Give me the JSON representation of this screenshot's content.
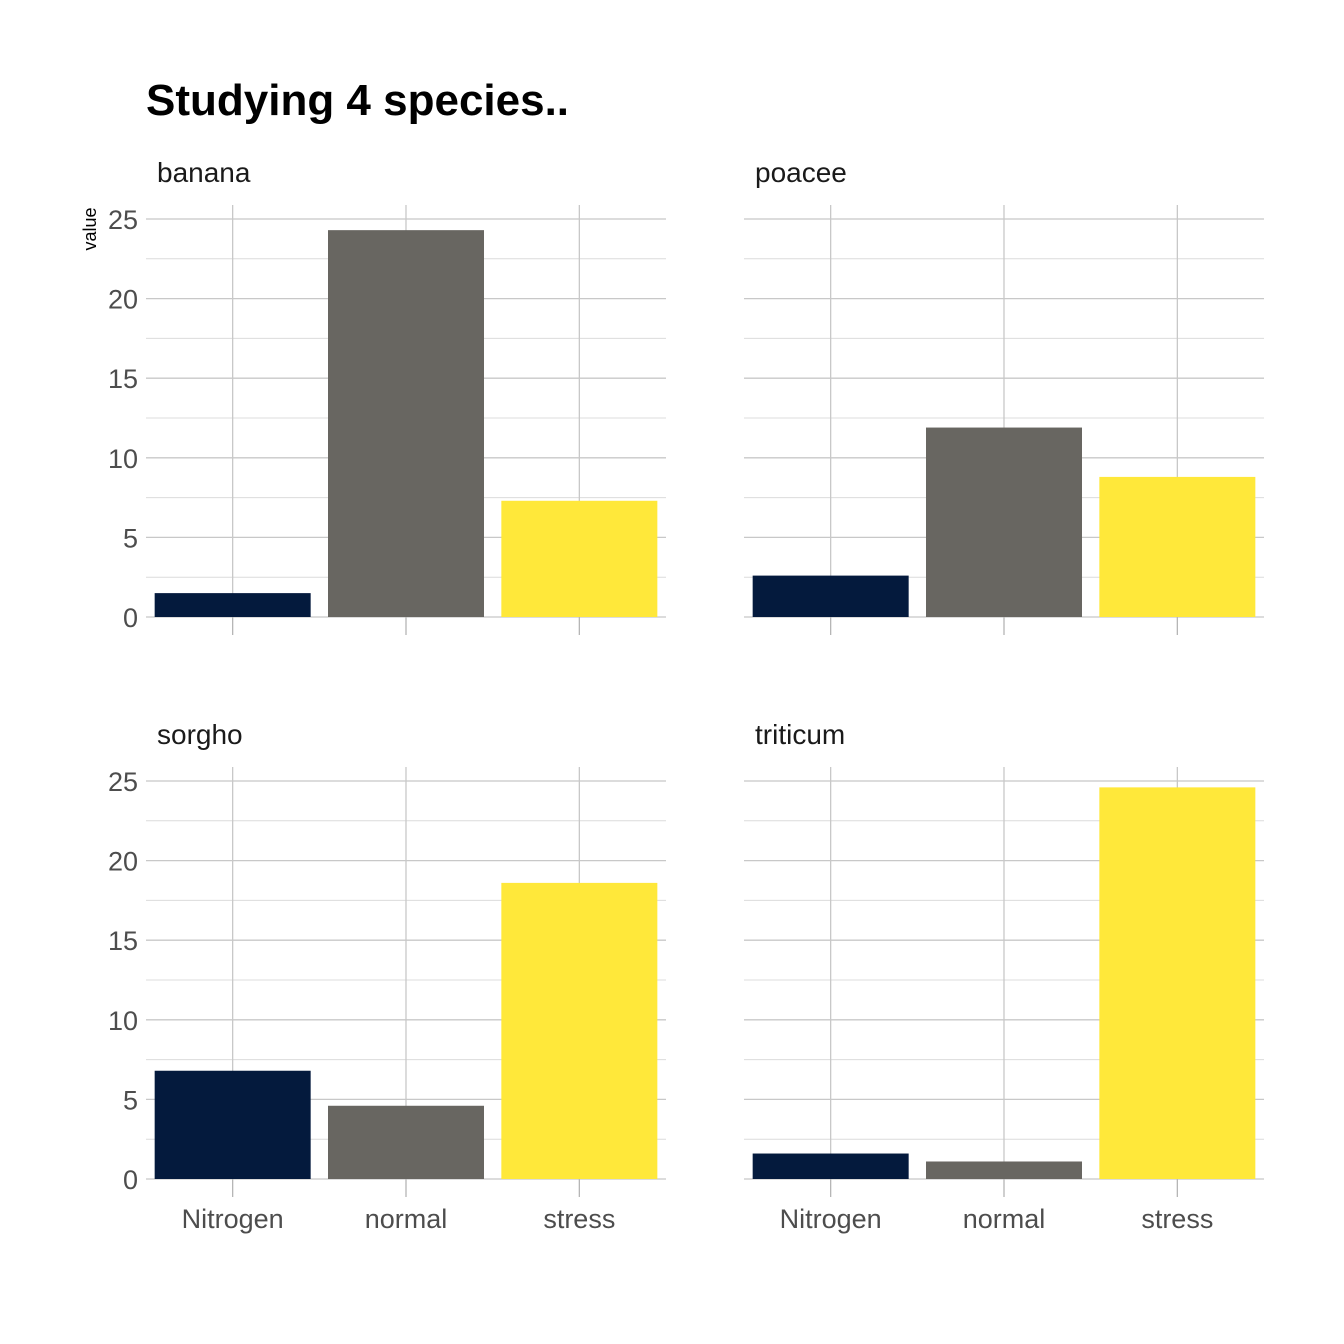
{
  "chart_data": {
    "type": "bar",
    "title": "Studying 4 species..",
    "ylabel": "value",
    "xlabel": "",
    "categories": [
      "Nitrogen",
      "normal",
      "stress"
    ],
    "colors": [
      "#041A3D",
      "#686661",
      "#FFE83A"
    ],
    "ylim": [
      0,
      25
    ],
    "yticks": [
      0,
      5,
      10,
      15,
      20,
      25
    ],
    "grid": true,
    "facets": [
      {
        "name": "banana",
        "values": [
          1.5,
          24.3,
          7.3
        ]
      },
      {
        "name": "poacee",
        "values": [
          2.6,
          11.9,
          8.8
        ]
      },
      {
        "name": "sorgho",
        "values": [
          6.8,
          4.6,
          18.6
        ]
      },
      {
        "name": "triticum",
        "values": [
          1.6,
          1.1,
          24.6
        ]
      }
    ]
  }
}
